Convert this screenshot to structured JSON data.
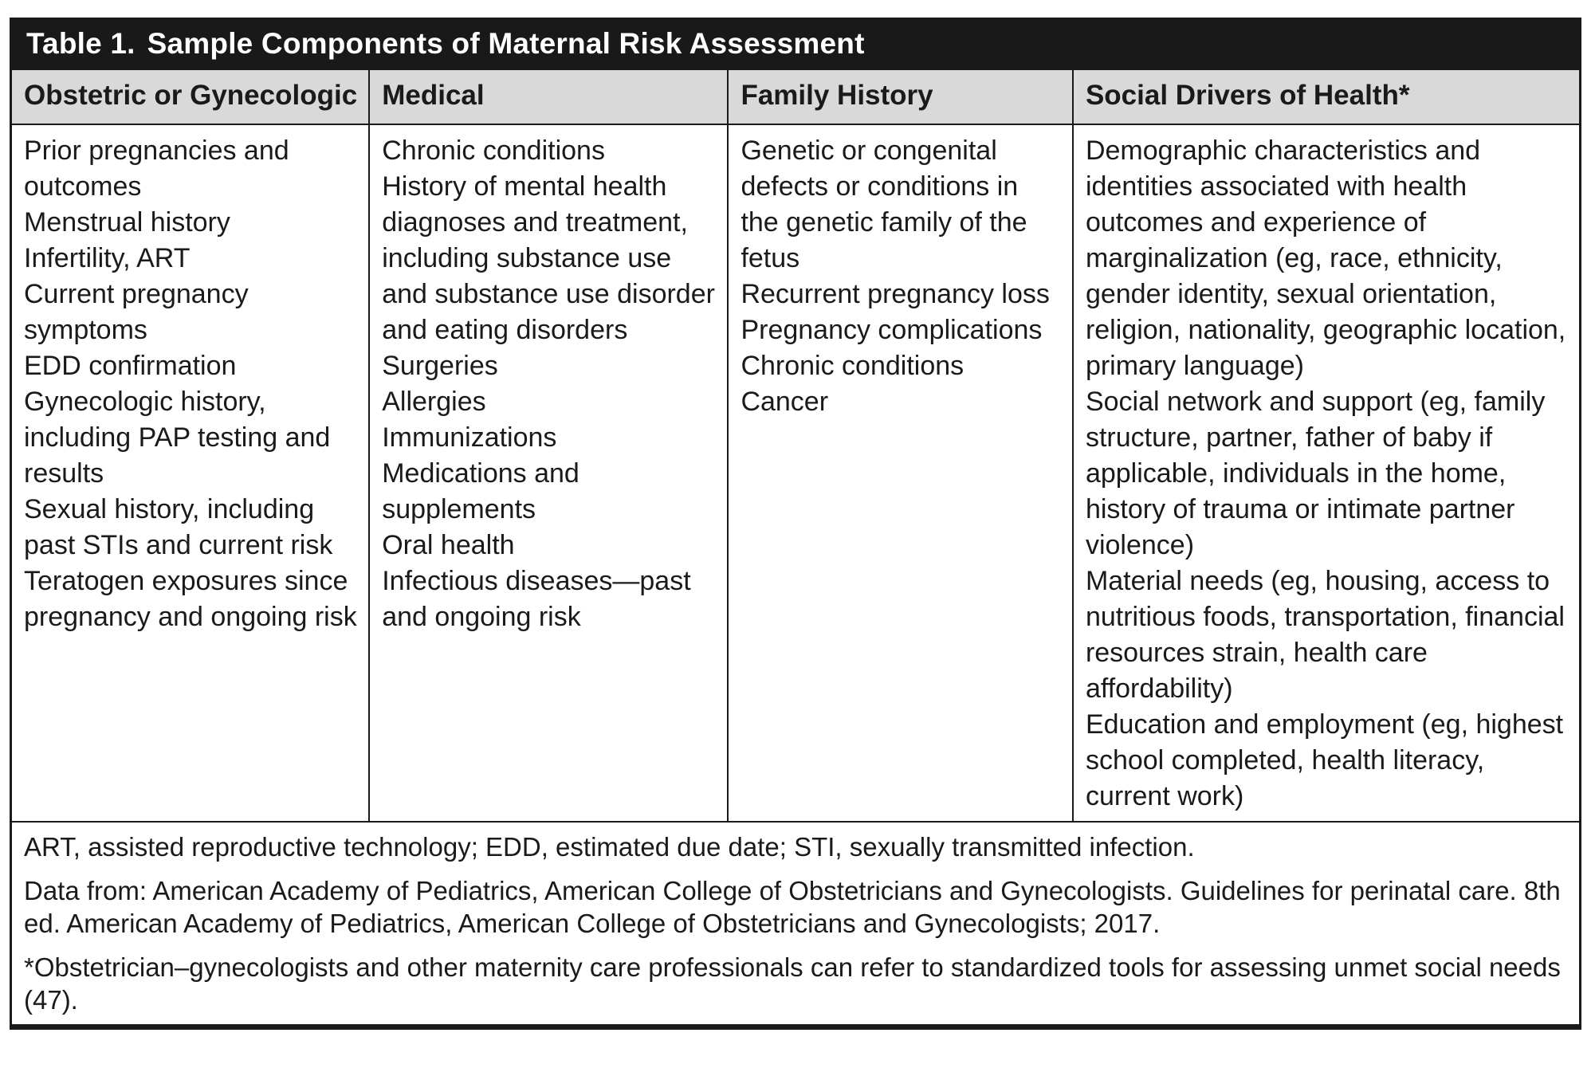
{
  "colors": {
    "title_bar_bg": "#191919",
    "title_text": "#ffffff",
    "header_row_bg": "#d9d9d9",
    "border": "#1a1a1a",
    "body_text": "#1a1a1a"
  },
  "table": {
    "label": "Table 1.",
    "title": "Sample Components of Maternal Risk Assessment",
    "columns": [
      {
        "header": "Obstetric or Gynecologic",
        "items": [
          "Prior pregnancies and outcomes",
          "Menstrual history",
          "Infertility, ART",
          "Current pregnancy symptoms",
          "EDD confirmation",
          "Gynecologic history, including PAP testing and results",
          "Sexual history, including past STIs and current risk",
          "Teratogen exposures since pregnancy and ongoing risk"
        ]
      },
      {
        "header": "Medical",
        "items": [
          "Chronic conditions",
          "History of mental health diagnoses and treatment, including substance use and substance use disorder and eating disorders",
          "Surgeries",
          "Allergies",
          "Immunizations",
          "Medications and supplements",
          "Oral health",
          "Infectious diseases—past and ongoing risk"
        ]
      },
      {
        "header": "Family History",
        "items": [
          "Genetic or congenital defects or conditions in the genetic family of the fetus",
          "Recurrent pregnancy loss",
          "Pregnancy complications",
          "Chronic conditions",
          "Cancer"
        ]
      },
      {
        "header": "Social Drivers of Health*",
        "items": [
          "Demographic characteristics and identities associated with health outcomes and experience of marginalization (eg, race, ethnicity, gender identity, sexual orientation, religion, nationality, geographic location, primary language)",
          "Social network and support (eg, family structure, partner, father of baby if applicable, individuals in the home, history of trauma or intimate partner violence)",
          "Material needs (eg, housing, access to nutritious foods, transportation, financial resources strain, health care affordability)",
          "Education and employment (eg, highest school completed, health literacy, current work)"
        ]
      }
    ],
    "footnotes": [
      "ART, assisted reproductive technology; EDD, estimated due date; STI, sexually transmitted infection.",
      "Data from: American Academy of Pediatrics, American College of Obstetricians and Gynecologists. Guidelines for perinatal care. 8th ed. American Academy of Pediatrics, American College of Obstetricians and Gynecologists; 2017.",
      "*Obstetrician–gynecologists and other maternity care professionals can refer to standardized tools for assessing unmet social needs (47)."
    ]
  }
}
